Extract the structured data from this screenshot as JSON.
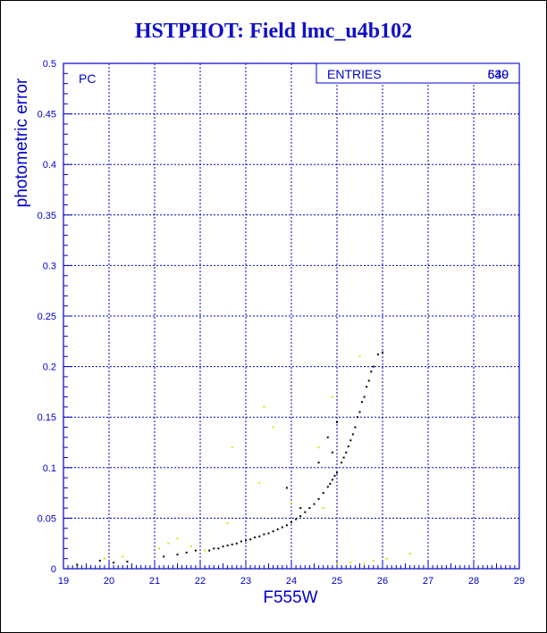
{
  "title": "HSTPHOT: Field lmc_u4b102",
  "colors": {
    "axis": "#0000c8",
    "grid": "#0000c8",
    "title": "#1010c8",
    "point_primary": "#000000",
    "point_secondary": "#e0e000"
  },
  "chart_data": {
    "type": "scatter",
    "title": "HSTPHOT: Field lmc_u4b102",
    "xlabel": "F555W",
    "ylabel": "photometric error",
    "xlim": [
      19,
      29
    ],
    "ylim": [
      0,
      0.5
    ],
    "x_ticks": [
      "19",
      "20",
      "21",
      "22",
      "23",
      "24",
      "25",
      "26",
      "27",
      "28",
      "29"
    ],
    "y_ticks": [
      "0",
      "0.05",
      "0.1",
      "0.15",
      "0.2",
      "0.25",
      "0.3",
      "0.35",
      "0.4",
      "0.45",
      "0.5"
    ],
    "grid": true,
    "annotation": "PC",
    "stats_box": {
      "label": "ENTRIES",
      "values": [
        "539",
        "640"
      ]
    },
    "series": [
      {
        "color": "#000000",
        "points": [
          [
            19.3,
            0.004
          ],
          [
            19.8,
            0.008
          ],
          [
            20.1,
            0.006
          ],
          [
            20.4,
            0.007
          ],
          [
            21.2,
            0.012
          ],
          [
            21.5,
            0.014
          ],
          [
            21.7,
            0.016
          ],
          [
            21.9,
            0.018
          ],
          [
            22.2,
            0.018
          ],
          [
            22.3,
            0.02
          ],
          [
            22.4,
            0.02
          ],
          [
            22.5,
            0.022
          ],
          [
            22.6,
            0.023
          ],
          [
            22.7,
            0.024
          ],
          [
            22.8,
            0.025
          ],
          [
            22.9,
            0.027
          ],
          [
            23.0,
            0.028
          ],
          [
            23.1,
            0.029
          ],
          [
            23.2,
            0.031
          ],
          [
            23.3,
            0.032
          ],
          [
            23.4,
            0.034
          ],
          [
            23.5,
            0.035
          ],
          [
            23.6,
            0.037
          ],
          [
            23.7,
            0.039
          ],
          [
            23.8,
            0.041
          ],
          [
            23.9,
            0.043
          ],
          [
            24.0,
            0.046
          ],
          [
            24.1,
            0.049
          ],
          [
            24.2,
            0.052
          ],
          [
            24.3,
            0.056
          ],
          [
            24.4,
            0.06
          ],
          [
            24.5,
            0.064
          ],
          [
            24.6,
            0.069
          ],
          [
            24.7,
            0.075
          ],
          [
            24.8,
            0.081
          ],
          [
            24.9,
            0.088
          ],
          [
            25.0,
            0.095
          ],
          [
            25.1,
            0.105
          ],
          [
            25.2,
            0.115
          ],
          [
            25.3,
            0.127
          ],
          [
            25.4,
            0.14
          ],
          [
            25.5,
            0.155
          ],
          [
            25.6,
            0.17
          ],
          [
            25.7,
            0.186
          ],
          [
            25.8,
            0.2
          ],
          [
            25.9,
            0.212
          ],
          [
            26.0,
            0.214
          ],
          [
            25.55,
            0.165
          ],
          [
            25.65,
            0.18
          ],
          [
            25.75,
            0.195
          ],
          [
            25.45,
            0.15
          ],
          [
            25.35,
            0.133
          ],
          [
            25.25,
            0.121
          ],
          [
            25.15,
            0.11
          ],
          [
            24.95,
            0.092
          ],
          [
            24.85,
            0.084
          ],
          [
            23.9,
            0.08
          ],
          [
            24.2,
            0.06
          ],
          [
            24.6,
            0.105
          ],
          [
            24.9,
            0.115
          ],
          [
            24.8,
            0.13
          ],
          [
            25.0,
            0.145
          ]
        ]
      },
      {
        "color": "#e0e000",
        "points": [
          [
            19.9,
            0.01
          ],
          [
            20.3,
            0.012
          ],
          [
            21.1,
            0.02
          ],
          [
            21.3,
            0.025
          ],
          [
            21.5,
            0.03
          ],
          [
            21.8,
            0.022
          ],
          [
            22.1,
            0.018
          ],
          [
            22.6,
            0.045
          ],
          [
            22.7,
            0.12
          ],
          [
            23.3,
            0.085
          ],
          [
            23.4,
            0.16
          ],
          [
            23.6,
            0.14
          ],
          [
            24.0,
            0.065
          ],
          [
            24.4,
            0.06
          ],
          [
            24.6,
            0.12
          ],
          [
            24.7,
            0.06
          ],
          [
            24.9,
            0.17
          ],
          [
            25.0,
            0.005
          ],
          [
            25.3,
            0.006
          ],
          [
            25.6,
            0.005
          ],
          [
            25.8,
            0.008
          ],
          [
            26.1,
            0.01
          ],
          [
            26.6,
            0.015
          ],
          [
            25.5,
            0.21
          ]
        ]
      }
    ]
  }
}
